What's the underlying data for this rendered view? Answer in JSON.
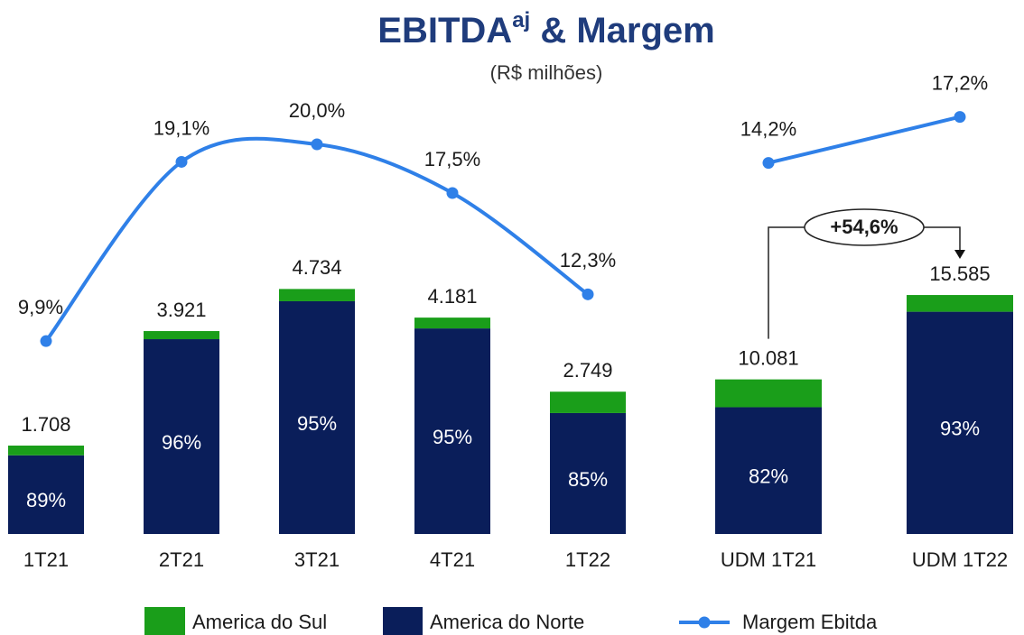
{
  "title": [
    "EBITDA",
    "aj",
    " & Margem"
  ],
  "subtitle": "(R$ milhões)",
  "chart_data": [
    {
      "type": "bar",
      "stacked": true,
      "categories": [
        "1T21",
        "2T21",
        "3T21",
        "4T21",
        "1T22"
      ],
      "totals": {
        "values": [
          1708,
          3921,
          4734,
          4181,
          2749
        ],
        "value_labels": [
          "1.708",
          "3.921",
          "4.734",
          "4.181",
          "2.749"
        ]
      },
      "series": [
        {
          "name": "America do Norte",
          "color": "#0a1e5a",
          "values": [
            89,
            96,
            95,
            95,
            85
          ],
          "value_labels": [
            "89%",
            "96%",
            "95%",
            "95%",
            "85%"
          ]
        },
        {
          "name": "America do Sul",
          "color": "#1a9e1a",
          "values": [
            11,
            4,
            5,
            5,
            15
          ]
        }
      ],
      "line": {
        "name": "Margem Ebitda",
        "color": "#2f80e8",
        "smooth": true,
        "values": [
          9.9,
          19.1,
          20.0,
          17.5,
          12.3
        ],
        "value_labels": [
          "9,9%",
          "19,1%",
          "20,0%",
          "17,5%",
          "12,3%"
        ]
      },
      "ylim": [
        0,
        8000
      ],
      "y2lim": [
        0,
        21.25
      ]
    },
    {
      "type": "bar",
      "stacked": true,
      "categories": [
        "UDM 1T21",
        "UDM 1T22"
      ],
      "totals": {
        "values": [
          10081,
          15585
        ],
        "value_labels": [
          "10.081",
          "15.585"
        ]
      },
      "series": [
        {
          "name": "America do Norte",
          "color": "#0a1e5a",
          "values": [
            82,
            93
          ],
          "value_labels": [
            "82%",
            "93%"
          ]
        },
        {
          "name": "America do Sul",
          "color": "#1a9e1a",
          "values": [
            18,
            7
          ]
        }
      ],
      "line": {
        "name": "Margem Ebitda",
        "color": "#2f80e8",
        "smooth": false,
        "values": [
          14.2,
          17.2
        ],
        "value_labels": [
          "14,2%",
          "17,2%"
        ]
      },
      "annotation": "+54,6%",
      "ylim": [
        0,
        27000
      ],
      "y2lim": [
        -10,
        17
      ]
    }
  ]
}
